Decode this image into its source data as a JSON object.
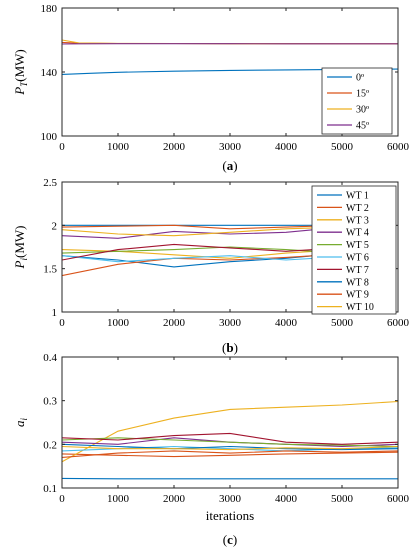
{
  "chart_data": [
    {
      "type": "line",
      "panel_label": "(a)",
      "ylabel": "P_T(MW)",
      "ylabel_main": "P",
      "ylabel_sub": "T",
      "ylabel_unit": "(MW)",
      "xlim": [
        0,
        6000
      ],
      "ylim": [
        100,
        180
      ],
      "xticks": [
        0,
        1000,
        2000,
        3000,
        4000,
        5000,
        6000
      ],
      "yticks": [
        100,
        140,
        180
      ],
      "legend_position": "bottom-right",
      "series": [
        {
          "name": "0º",
          "color": "#0072BD",
          "x": [
            0,
            500,
            1000,
            2000,
            3000,
            4000,
            5000,
            6000
          ],
          "y": [
            138.5,
            139.2,
            139.8,
            140.5,
            141.0,
            141.3,
            141.6,
            141.8
          ]
        },
        {
          "name": "15º",
          "color": "#D95319",
          "x": [
            0,
            300,
            1000,
            2000,
            3000,
            4000,
            5000,
            6000
          ],
          "y": [
            158.5,
            158.0,
            157.8,
            157.8,
            157.7,
            157.7,
            157.6,
            157.6
          ]
        },
        {
          "name": "30º",
          "color": "#EDB120",
          "x": [
            0,
            300,
            1000,
            2000,
            3000,
            4000,
            5000,
            6000
          ],
          "y": [
            160.0,
            158.2,
            157.9,
            157.8,
            157.7,
            157.7,
            157.6,
            157.6
          ]
        },
        {
          "name": "45º",
          "color": "#7E2F8E",
          "x": [
            0,
            300,
            1000,
            2000,
            3000,
            4000,
            5000,
            6000
          ],
          "y": [
            157.5,
            157.6,
            157.7,
            157.7,
            157.7,
            157.6,
            157.6,
            157.6
          ]
        }
      ]
    },
    {
      "type": "line",
      "panel_label": "(b)",
      "ylabel": "P_i(MW)",
      "ylabel_main": "P",
      "ylabel_sub": "i",
      "ylabel_unit": "(MW)",
      "xlim": [
        0,
        6000
      ],
      "ylim": [
        1,
        2.5
      ],
      "xticks": [
        0,
        1000,
        2000,
        3000,
        4000,
        5000,
        6000
      ],
      "yticks": [
        1,
        1.5,
        2,
        2.5
      ],
      "legend_position": "top-right",
      "series": [
        {
          "name": "WT 1",
          "color": "#0072BD",
          "x": [
            0,
            1000,
            2000,
            3000,
            4000,
            4500
          ],
          "y": [
            1.65,
            1.6,
            1.52,
            1.58,
            1.62,
            1.65
          ]
        },
        {
          "name": "WT 2",
          "color": "#D95319",
          "x": [
            0,
            1000,
            2000,
            3000,
            4000,
            4500
          ],
          "y": [
            1.42,
            1.55,
            1.62,
            1.6,
            1.63,
            1.65
          ]
        },
        {
          "name": "WT 3",
          "color": "#EDB120",
          "x": [
            0,
            1000,
            2000,
            3000,
            4000,
            4500
          ],
          "y": [
            1.72,
            1.7,
            1.66,
            1.62,
            1.68,
            1.7
          ]
        },
        {
          "name": "WT 4",
          "color": "#7E2F8E",
          "x": [
            0,
            1000,
            2000,
            3000,
            4000,
            4500
          ],
          "y": [
            1.88,
            1.85,
            1.93,
            1.9,
            1.92,
            1.95
          ]
        },
        {
          "name": "WT 5",
          "color": "#77AC30",
          "x": [
            0,
            1000,
            2000,
            3000,
            4000,
            4500
          ],
          "y": [
            1.68,
            1.7,
            1.72,
            1.75,
            1.72,
            1.7
          ]
        },
        {
          "name": "WT 6",
          "color": "#4DBEEE",
          "x": [
            0,
            1000,
            2000,
            3000,
            4000,
            4500
          ],
          "y": [
            1.65,
            1.58,
            1.62,
            1.65,
            1.6,
            1.62
          ]
        },
        {
          "name": "WT 7",
          "color": "#A2142F",
          "x": [
            0,
            1000,
            2000,
            3000,
            4000,
            4500
          ],
          "y": [
            1.6,
            1.72,
            1.78,
            1.74,
            1.7,
            1.72
          ]
        },
        {
          "name": "WT 8",
          "color": "#0072BD",
          "x": [
            0,
            1000,
            2000,
            3000,
            4000,
            4500
          ],
          "y": [
            2.0,
            2.0,
            2.0,
            2.0,
            2.0,
            2.0
          ]
        },
        {
          "name": "WT 9",
          "color": "#D95319",
          "x": [
            0,
            1000,
            2000,
            3000,
            4000,
            4500
          ],
          "y": [
            1.98,
            1.99,
            2.0,
            1.96,
            1.98,
            1.99
          ]
        },
        {
          "name": "WT 10",
          "color": "#EDB120",
          "x": [
            0,
            1000,
            2000,
            3000,
            4000,
            4500
          ],
          "y": [
            1.95,
            1.9,
            1.88,
            1.92,
            1.96,
            1.97
          ]
        }
      ]
    },
    {
      "type": "line",
      "panel_label": "(c)",
      "ylabel": "a_i",
      "ylabel_main": "a",
      "ylabel_sub": "i",
      "ylabel_unit": "",
      "xlabel": "iterations",
      "xlim": [
        0,
        6000
      ],
      "ylim": [
        0.1,
        0.4
      ],
      "xticks": [
        0,
        1000,
        2000,
        3000,
        4000,
        5000,
        6000
      ],
      "yticks": [
        0.1,
        0.2,
        0.3,
        0.4
      ],
      "series": [
        {
          "color": "#0072BD",
          "x": [
            0,
            1000,
            2000,
            3000,
            4000,
            5000,
            6000
          ],
          "y": [
            0.122,
            0.121,
            0.121,
            0.121,
            0.121,
            0.121,
            0.121
          ]
        },
        {
          "color": "#D95319",
          "x": [
            0,
            1000,
            2000,
            3000,
            4000,
            5000,
            6000
          ],
          "y": [
            0.178,
            0.175,
            0.172,
            0.175,
            0.178,
            0.18,
            0.182
          ]
        },
        {
          "color": "#EDB120",
          "x": [
            0,
            1000,
            2000,
            3000,
            4000,
            5000,
            6000
          ],
          "y": [
            0.16,
            0.23,
            0.26,
            0.28,
            0.285,
            0.29,
            0.298
          ]
        },
        {
          "color": "#7E2F8E",
          "x": [
            0,
            1000,
            2000,
            3000,
            4000,
            5000,
            6000
          ],
          "y": [
            0.205,
            0.2,
            0.215,
            0.205,
            0.2,
            0.195,
            0.2
          ]
        },
        {
          "color": "#77AC30",
          "x": [
            0,
            1000,
            2000,
            3000,
            4000,
            5000,
            6000
          ],
          "y": [
            0.21,
            0.215,
            0.21,
            0.205,
            0.2,
            0.198,
            0.195
          ]
        },
        {
          "color": "#4DBEEE",
          "x": [
            0,
            1000,
            2000,
            3000,
            4000,
            5000,
            6000
          ],
          "y": [
            0.185,
            0.19,
            0.195,
            0.19,
            0.185,
            0.19,
            0.192
          ]
        },
        {
          "color": "#A2142F",
          "x": [
            0,
            1000,
            2000,
            3000,
            4000,
            5000,
            6000
          ],
          "y": [
            0.215,
            0.21,
            0.22,
            0.225,
            0.205,
            0.2,
            0.205
          ]
        },
        {
          "color": "#0072BD",
          "x": [
            0,
            1000,
            2000,
            3000,
            4000,
            5000,
            6000
          ],
          "y": [
            0.2,
            0.195,
            0.19,
            0.195,
            0.19,
            0.188,
            0.19
          ]
        },
        {
          "color": "#D95319",
          "x": [
            0,
            1000,
            2000,
            3000,
            4000,
            5000,
            6000
          ],
          "y": [
            0.17,
            0.18,
            0.185,
            0.18,
            0.185,
            0.182,
            0.185
          ]
        },
        {
          "color": "#EDB120",
          "x": [
            0,
            1000,
            2000,
            3000,
            4000,
            5000,
            6000
          ],
          "y": [
            0.195,
            0.19,
            0.19,
            0.188,
            0.192,
            0.19,
            0.195
          ]
        }
      ]
    }
  ]
}
